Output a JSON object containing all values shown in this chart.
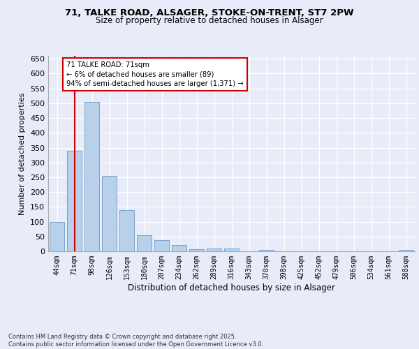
{
  "title1": "71, TALKE ROAD, ALSAGER, STOKE-ON-TRENT, ST7 2PW",
  "title2": "Size of property relative to detached houses in Alsager",
  "xlabel": "Distribution of detached houses by size in Alsager",
  "ylabel": "Number of detached properties",
  "categories": [
    "44sqm",
    "71sqm",
    "98sqm",
    "126sqm",
    "153sqm",
    "180sqm",
    "207sqm",
    "234sqm",
    "262sqm",
    "289sqm",
    "316sqm",
    "343sqm",
    "370sqm",
    "398sqm",
    "425sqm",
    "452sqm",
    "479sqm",
    "506sqm",
    "534sqm",
    "561sqm",
    "588sqm"
  ],
  "values": [
    100,
    340,
    505,
    255,
    140,
    55,
    37,
    22,
    6,
    10,
    10,
    0,
    5,
    0,
    0,
    0,
    0,
    0,
    0,
    0,
    4
  ],
  "bar_color": "#b8d0ea",
  "bar_edge_color": "#6699cc",
  "highlight_index": 1,
  "highlight_line_color": "#cc0000",
  "annotation_text": "71 TALKE ROAD: 71sqm\n← 6% of detached houses are smaller (89)\n94% of semi-detached houses are larger (1,371) →",
  "annotation_box_color": "#ffffff",
  "annotation_box_edge_color": "#cc0000",
  "ylim": [
    0,
    660
  ],
  "yticks": [
    0,
    50,
    100,
    150,
    200,
    250,
    300,
    350,
    400,
    450,
    500,
    550,
    600,
    650
  ],
  "footer": "Contains HM Land Registry data © Crown copyright and database right 2025.\nContains public sector information licensed under the Open Government Licence v3.0.",
  "background_color": "#e8ecf8",
  "plot_bg_color": "#e8ecf8"
}
